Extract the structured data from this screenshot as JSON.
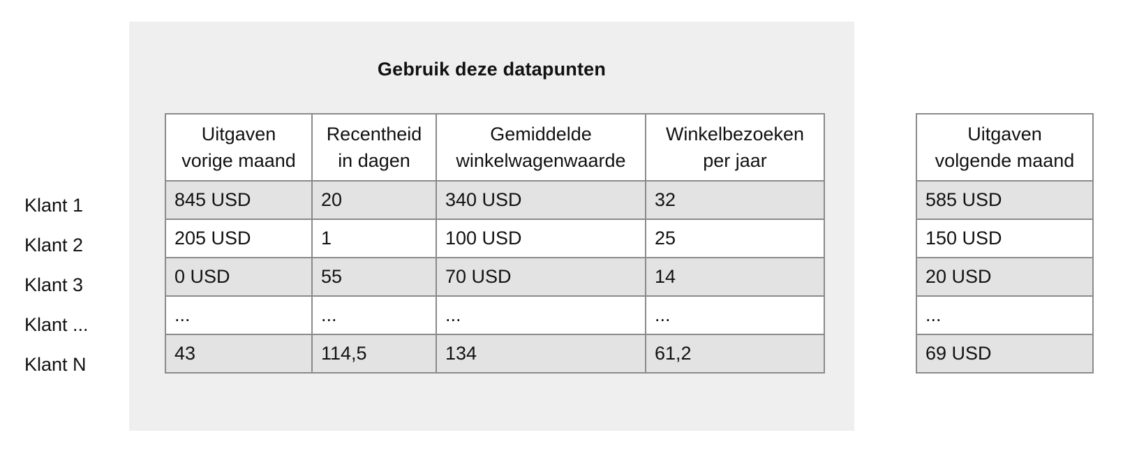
{
  "title": "Gebruik deze datapunten",
  "row_labels": [
    "Klant 1",
    "Klant 2",
    "Klant 3",
    "Klant ...",
    "Klant N"
  ],
  "main_table": {
    "headers": [
      [
        "Uitgaven",
        "vorige maand"
      ],
      [
        "Recentheid",
        "in dagen"
      ],
      [
        "Gemiddelde",
        "winkelwagenwaarde"
      ],
      [
        "Winkelbezoeken",
        "per jaar"
      ]
    ],
    "rows": [
      [
        "845 USD",
        "20",
        "340 USD",
        "32"
      ],
      [
        "205 USD",
        "1",
        "100 USD",
        "25"
      ],
      [
        "0 USD",
        "55",
        "70 USD",
        "14"
      ],
      [
        "...",
        "...",
        "...",
        "..."
      ],
      [
        "43",
        "114,5",
        "134",
        "61,2"
      ]
    ]
  },
  "target_table": {
    "header": [
      "Uitgaven",
      "volgende maand"
    ],
    "rows": [
      "585 USD",
      "150 USD",
      "20 USD",
      "...",
      "69 USD"
    ]
  },
  "colors": {
    "panel": "#efefef",
    "shaded_row": "#e3e3e3",
    "border": "#8a8a8a"
  }
}
